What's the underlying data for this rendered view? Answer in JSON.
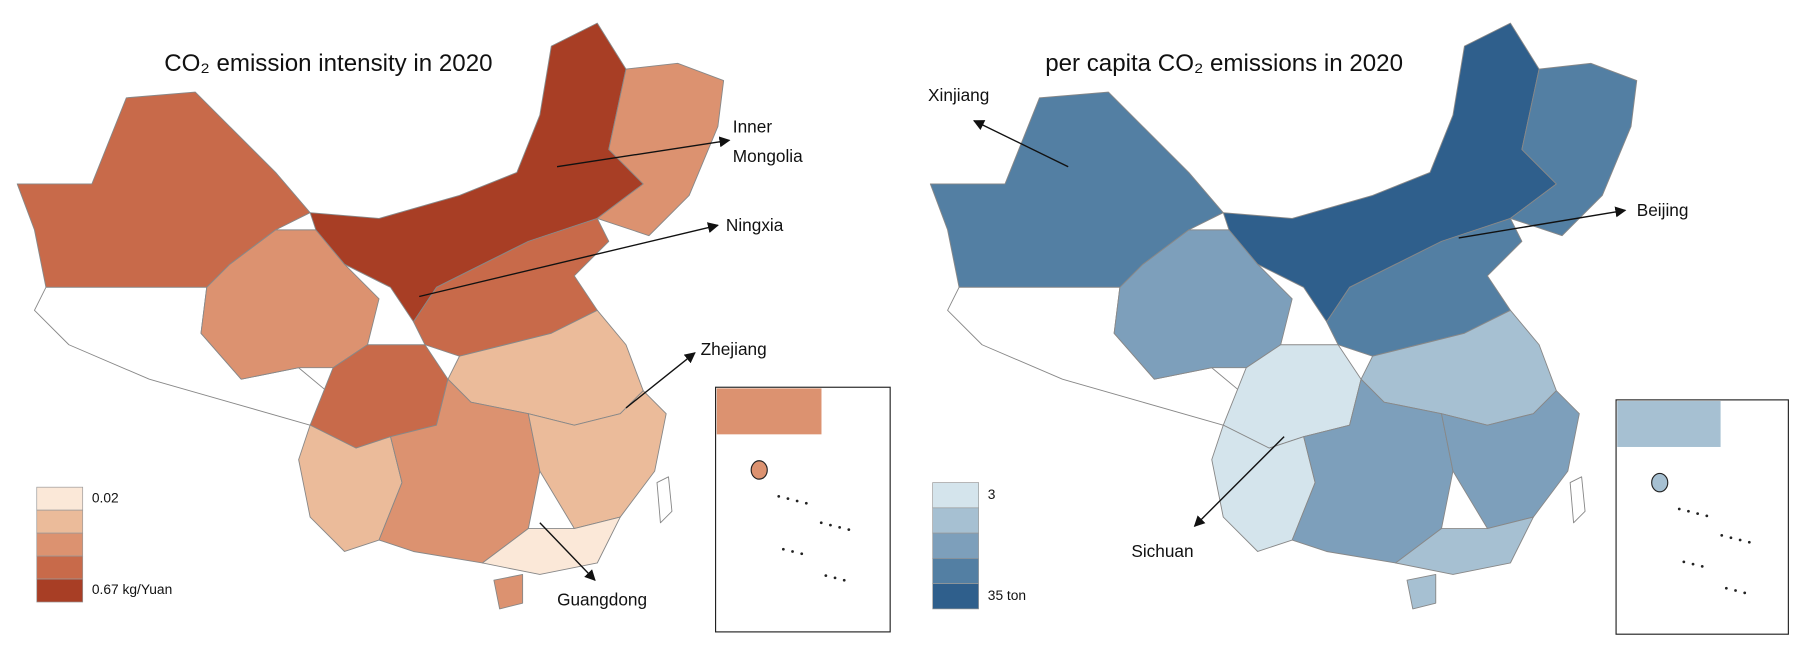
{
  "maps": [
    {
      "title": "CO₂ emission intensity in 2020",
      "legend": {
        "colors": [
          "#fbe8d8",
          "#ebbb9a",
          "#dc9270",
          "#c86a4a",
          "#a83e25"
        ],
        "min_label": "0.02",
        "max_label": "0.67 kg/Yuan"
      },
      "annotations": [
        "Inner Mongolia",
        "Ningxia",
        "Zhejiang",
        "Guangdong"
      ]
    },
    {
      "title": "per capita CO₂ emissions in 2020",
      "legend": {
        "colors": [
          "#d4e4ec",
          "#a6c0d2",
          "#7d9fbb",
          "#537fa3",
          "#2f5f8c"
        ],
        "min_label": "3",
        "max_label": "35 ton"
      },
      "annotations": [
        "Xinjiang",
        "Beijing",
        "Sichuan"
      ]
    }
  ]
}
